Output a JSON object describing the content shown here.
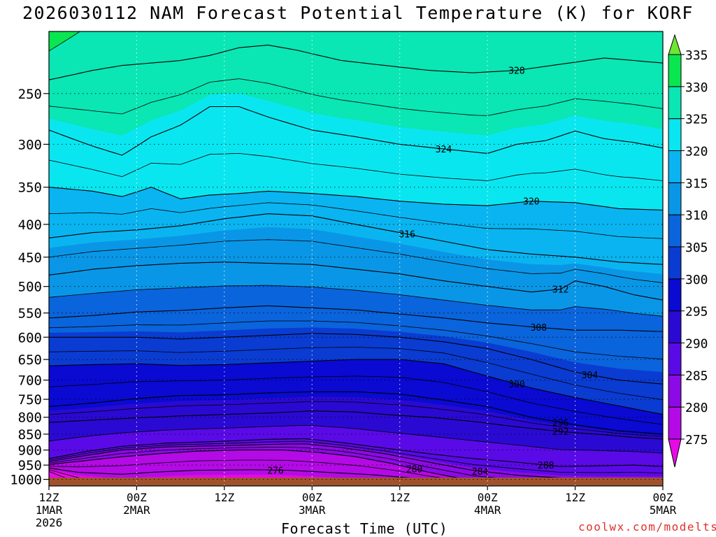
{
  "title": "2026030112 NAM Forecast Potential Temperature (K) for KORF",
  "credit": "coolwx.com/modelts",
  "chart_data": {
    "type": "heatmap",
    "title": "2026030112 NAM Forecast Potential Temperature (K) for KORF",
    "xlabel": "Forecast Time (UTC)",
    "ylabel": "",
    "x_range_hours": [
      0,
      84
    ],
    "y_axis": {
      "scale": "log-pressure",
      "range_hPa": [
        1024,
        200
      ],
      "ticks": [
        250,
        300,
        350,
        400,
        450,
        500,
        550,
        600,
        650,
        700,
        750,
        800,
        850,
        900,
        950,
        1000
      ]
    },
    "x_ticks": [
      {
        "hour": 0,
        "lines": [
          "12Z",
          "1MAR",
          "2026"
        ]
      },
      {
        "hour": 12,
        "lines": [
          "00Z",
          "2MAR"
        ]
      },
      {
        "hour": 24,
        "lines": [
          "12Z"
        ]
      },
      {
        "hour": 36,
        "lines": [
          "00Z",
          "3MAR"
        ]
      },
      {
        "hour": 48,
        "lines": [
          "12Z"
        ]
      },
      {
        "hour": 60,
        "lines": [
          "00Z",
          "4MAR"
        ]
      },
      {
        "hour": 72,
        "lines": [
          "12Z"
        ]
      },
      {
        "hour": 84,
        "lines": [
          "00Z",
          "5MAR"
        ]
      }
    ],
    "gridlines": true,
    "colorbar": {
      "levels": [
        275,
        280,
        285,
        290,
        295,
        300,
        305,
        310,
        315,
        320,
        325,
        330,
        335
      ],
      "colors": [
        "#e60ae6",
        "#b40ae6",
        "#8c0ae6",
        "#5a0ae6",
        "#2a0ad2",
        "#0a0ad2",
        "#0a3cd2",
        "#0a64dc",
        "#0a96e6",
        "#0ab4f0",
        "#0ae6f0",
        "#0ae6b4",
        "#0ae650",
        "#6ee632"
      ]
    },
    "ground_color": "#a0522d",
    "contour_interval": 4,
    "isentropes": [
      {
        "theta": 276,
        "pts": [
          [
            0,
            960
          ],
          [
            4,
            975
          ],
          [
            10,
            982
          ],
          [
            14,
            975
          ],
          [
            20,
            968
          ],
          [
            28,
            966
          ],
          [
            33,
            968
          ],
          [
            38,
            975
          ],
          [
            44,
            983
          ],
          [
            50,
            996
          ],
          [
            55,
            1010
          ]
        ],
        "label_hour": 31
      },
      {
        "theta": 280,
        "pts": [
          [
            0,
            948
          ],
          [
            5,
            935
          ],
          [
            10,
            922
          ],
          [
            15,
            912
          ],
          [
            20,
            904
          ],
          [
            26,
            900
          ],
          [
            32,
            900
          ],
          [
            37,
            908
          ],
          [
            42,
            922
          ],
          [
            47,
            945
          ],
          [
            52,
            975
          ],
          [
            58,
            1005
          ],
          [
            64,
            1018
          ]
        ],
        "label_hour": 50
      },
      {
        "theta": 284,
        "pts": [
          [
            0,
            938
          ],
          [
            5,
            918
          ],
          [
            10,
            900
          ],
          [
            16,
            890
          ],
          [
            24,
            886
          ],
          [
            30,
            882
          ],
          [
            35,
            880
          ],
          [
            40,
            892
          ],
          [
            46,
            912
          ],
          [
            52,
            940
          ],
          [
            58,
            968
          ],
          [
            64,
            985
          ],
          [
            70,
            995
          ],
          [
            76,
            1000
          ],
          [
            84,
            1000
          ]
        ],
        "label_hour": 59
      },
      {
        "theta": 288,
        "pts": [
          [
            0,
            928
          ],
          [
            5,
            905
          ],
          [
            10,
            888
          ],
          [
            16,
            878
          ],
          [
            24,
            872
          ],
          [
            30,
            866
          ],
          [
            35,
            864
          ],
          [
            40,
            876
          ],
          [
            46,
            894
          ],
          [
            52,
            912
          ],
          [
            58,
            928
          ],
          [
            64,
            940
          ],
          [
            70,
            955
          ],
          [
            76,
            952
          ],
          [
            80,
            950
          ],
          [
            84,
            955
          ]
        ],
        "label_hour": 68
      },
      {
        "theta": 292,
        "pts": [
          [
            0,
            815
          ],
          [
            6,
            808
          ],
          [
            12,
            802
          ],
          [
            18,
            796
          ],
          [
            24,
            792
          ],
          [
            30,
            788
          ],
          [
            36,
            782
          ],
          [
            42,
            785
          ],
          [
            46,
            792
          ],
          [
            52,
            800
          ],
          [
            58,
            812
          ],
          [
            64,
            828
          ],
          [
            70,
            842
          ],
          [
            76,
            852
          ],
          [
            80,
            860
          ],
          [
            84,
            865
          ]
        ],
        "label_hour": 70
      },
      {
        "theta": 296,
        "pts": [
          [
            0,
            770
          ],
          [
            6,
            760
          ],
          [
            12,
            748
          ],
          [
            18,
            740
          ],
          [
            24,
            738
          ],
          [
            30,
            733
          ],
          [
            36,
            730
          ],
          [
            42,
            730
          ],
          [
            48,
            736
          ],
          [
            54,
            752
          ],
          [
            60,
            770
          ],
          [
            66,
            800
          ],
          [
            72,
            822
          ],
          [
            78,
            840
          ],
          [
            84,
            850
          ]
        ],
        "label_hour": 70
      },
      {
        "theta": 300,
        "pts": [
          [
            0,
            665
          ],
          [
            6,
            662
          ],
          [
            12,
            660
          ],
          [
            18,
            664
          ],
          [
            24,
            662
          ],
          [
            30,
            658
          ],
          [
            36,
            654
          ],
          [
            42,
            650
          ],
          [
            48,
            650
          ],
          [
            54,
            660
          ],
          [
            60,
            690
          ],
          [
            66,
            720
          ],
          [
            72,
            745
          ],
          [
            78,
            768
          ],
          [
            84,
            792
          ]
        ],
        "label_hour": 64
      },
      {
        "theta": 304,
        "pts": [
          [
            0,
            600
          ],
          [
            6,
            600
          ],
          [
            12,
            600
          ],
          [
            18,
            604
          ],
          [
            24,
            600
          ],
          [
            30,
            596
          ],
          [
            36,
            592
          ],
          [
            42,
            594
          ],
          [
            48,
            600
          ],
          [
            54,
            610
          ],
          [
            60,
            625
          ],
          [
            66,
            650
          ],
          [
            72,
            680
          ],
          [
            78,
            700
          ],
          [
            84,
            710
          ]
        ],
        "label_hour": 74
      },
      {
        "theta": 308,
        "pts": [
          [
            0,
            560
          ],
          [
            6,
            555
          ],
          [
            12,
            548
          ],
          [
            18,
            545
          ],
          [
            24,
            540
          ],
          [
            30,
            536
          ],
          [
            36,
            540
          ],
          [
            42,
            544
          ],
          [
            48,
            552
          ],
          [
            54,
            560
          ],
          [
            60,
            570
          ],
          [
            66,
            578
          ],
          [
            72,
            585
          ],
          [
            78,
            585
          ],
          [
            84,
            588
          ]
        ],
        "label_hour": 67
      },
      {
        "theta": 312,
        "pts": [
          [
            0,
            480
          ],
          [
            6,
            470
          ],
          [
            12,
            464
          ],
          [
            18,
            460
          ],
          [
            24,
            458
          ],
          [
            30,
            460
          ],
          [
            36,
            462
          ],
          [
            42,
            470
          ],
          [
            48,
            478
          ],
          [
            54,
            490
          ],
          [
            60,
            500
          ],
          [
            66,
            510
          ],
          [
            70,
            505
          ],
          [
            72,
            490
          ],
          [
            76,
            500
          ],
          [
            80,
            515
          ],
          [
            84,
            525
          ]
        ],
        "label_hour": 70
      },
      {
        "theta": 316,
        "pts": [
          [
            0,
            420
          ],
          [
            6,
            412
          ],
          [
            12,
            408
          ],
          [
            18,
            402
          ],
          [
            24,
            392
          ],
          [
            30,
            385
          ],
          [
            36,
            388
          ],
          [
            42,
            400
          ],
          [
            48,
            412
          ],
          [
            54,
            425
          ],
          [
            60,
            438
          ],
          [
            66,
            445
          ],
          [
            72,
            450
          ],
          [
            78,
            458
          ],
          [
            84,
            462
          ]
        ],
        "label_hour": 49
      },
      {
        "theta": 320,
        "pts": [
          [
            0,
            350
          ],
          [
            6,
            355
          ],
          [
            10,
            362
          ],
          [
            14,
            350
          ],
          [
            18,
            365
          ],
          [
            22,
            360
          ],
          [
            26,
            358
          ],
          [
            30,
            355
          ],
          [
            36,
            358
          ],
          [
            42,
            362
          ],
          [
            48,
            368
          ],
          [
            54,
            372
          ],
          [
            60,
            374
          ],
          [
            66,
            368
          ],
          [
            72,
            370
          ],
          [
            78,
            378
          ],
          [
            84,
            380
          ]
        ],
        "label_hour": 66
      },
      {
        "theta": 324,
        "pts": [
          [
            0,
            285
          ],
          [
            6,
            302
          ],
          [
            10,
            312
          ],
          [
            14,
            292
          ],
          [
            18,
            280
          ],
          [
            22,
            262
          ],
          [
            26,
            262
          ],
          [
            30,
            272
          ],
          [
            36,
            285
          ],
          [
            42,
            292
          ],
          [
            48,
            300
          ],
          [
            54,
            305
          ],
          [
            60,
            310
          ],
          [
            64,
            300
          ],
          [
            68,
            296
          ],
          [
            72,
            286
          ],
          [
            76,
            294
          ],
          [
            80,
            298
          ],
          [
            84,
            304
          ]
        ],
        "label_hour": 54
      },
      {
        "theta": 328,
        "pts": [
          [
            0,
            238
          ],
          [
            6,
            230
          ],
          [
            10,
            226
          ],
          [
            14,
            224
          ],
          [
            18,
            222
          ],
          [
            22,
            218
          ],
          [
            26,
            212
          ],
          [
            30,
            210
          ],
          [
            34,
            214
          ],
          [
            40,
            222
          ],
          [
            46,
            226
          ],
          [
            52,
            230
          ],
          [
            58,
            232
          ],
          [
            64,
            230
          ],
          [
            70,
            225
          ],
          [
            76,
            220
          ],
          [
            80,
            222
          ],
          [
            84,
            224
          ]
        ],
        "label_hour": 64
      }
    ]
  }
}
